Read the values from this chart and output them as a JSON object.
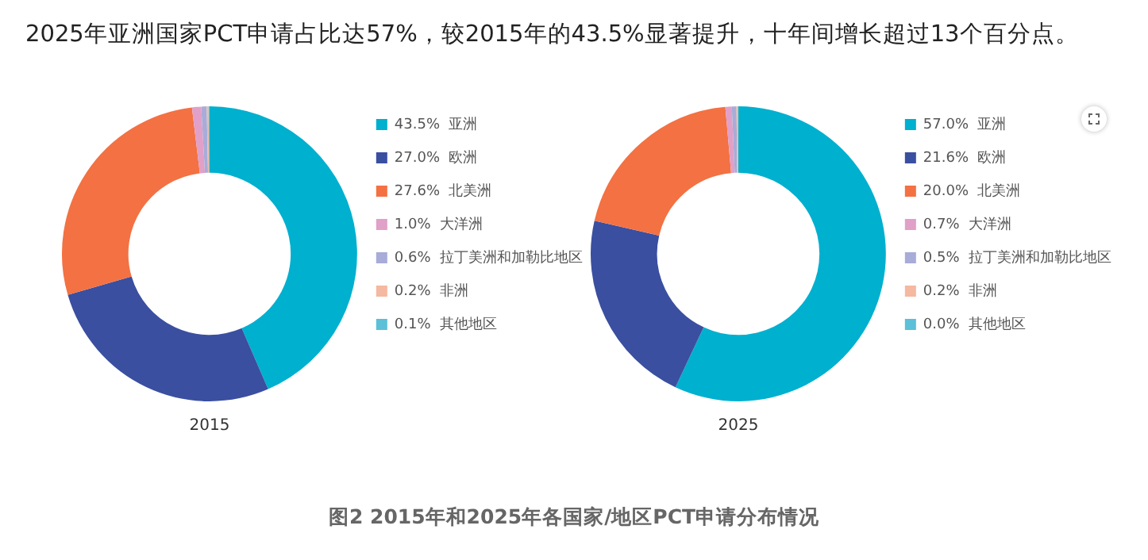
{
  "chart_data": [
    {
      "type": "donut",
      "xlabel": "2015",
      "annotations": [
        "2025年亚洲国家PCT申请占比达57%，较2015年的43.5%显著提升，十年间增长超过13个百分点。"
      ],
      "categories": [
        "亚洲",
        "欧洲",
        "北美洲",
        "大洋洲",
        "拉丁美洲和加勒比地区",
        "非洲",
        "其他地区"
      ],
      "values": [
        43.5,
        27.0,
        27.6,
        1.0,
        0.6,
        0.2,
        0.1
      ],
      "value_labels": [
        "43.5%",
        "27.0%",
        "27.6%",
        "1.0%",
        "0.6%",
        "0.2%",
        "0.1%"
      ],
      "colors": [
        "#00b0cf",
        "#3a4fa0",
        "#f37142",
        "#e0a0c8",
        "#a8acd8",
        "#f5b8a0",
        "#5bc0d8"
      ],
      "legend": "right"
    },
    {
      "type": "donut",
      "xlabel": "2025",
      "annotations": [
        "图2  2015年和2025年各国家/地区PCT申请分布情况"
      ],
      "categories": [
        "亚洲",
        "欧洲",
        "北美洲",
        "大洋洲",
        "拉丁美洲和加勒比地区",
        "非洲",
        "其他地区"
      ],
      "values": [
        57.0,
        21.6,
        20.0,
        0.7,
        0.5,
        0.2,
        0.0
      ],
      "value_labels": [
        "57.0%",
        "21.6%",
        "20.0%",
        "0.7%",
        "0.5%",
        "0.2%",
        "0.0%"
      ],
      "colors": [
        "#00b0cf",
        "#3a4fa0",
        "#f37142",
        "#e0a0c8",
        "#a8acd8",
        "#f5b8a0",
        "#5bc0d8"
      ],
      "legend": "right"
    }
  ]
}
